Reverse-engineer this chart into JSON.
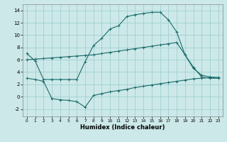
{
  "bg_color": "#cce8e8",
  "grid_color": "#99cccc",
  "line_color": "#1a6b6b",
  "xlabel": "Humidex (Indice chaleur)",
  "xlim": [
    -0.5,
    23.5
  ],
  "ylim": [
    -3.2,
    15.0
  ],
  "yticks": [
    -2,
    0,
    2,
    4,
    6,
    8,
    10,
    12,
    14
  ],
  "xticks": [
    0,
    1,
    2,
    3,
    4,
    5,
    6,
    7,
    8,
    9,
    10,
    11,
    12,
    13,
    14,
    15,
    16,
    17,
    18,
    19,
    20,
    21,
    22,
    23
  ],
  "line1_x": [
    0,
    1,
    2,
    3,
    4,
    5,
    6,
    7,
    8,
    9,
    10,
    11,
    12,
    13,
    14,
    15,
    16,
    17,
    18,
    19,
    20,
    21,
    22,
    23
  ],
  "line1_y": [
    7.0,
    5.8,
    2.8,
    2.8,
    2.8,
    2.8,
    2.8,
    5.7,
    8.3,
    9.5,
    11.0,
    11.5,
    13.0,
    13.3,
    13.5,
    13.7,
    13.7,
    12.5,
    10.5,
    6.8,
    4.8,
    3.2,
    3.0,
    3.0
  ],
  "line2_x": [
    0,
    1,
    2,
    3,
    4,
    5,
    6,
    7,
    8,
    9,
    10,
    11,
    12,
    13,
    14,
    15,
    16,
    17,
    18,
    19,
    20,
    21,
    22,
    23
  ],
  "line2_y": [
    6.0,
    6.1,
    6.2,
    6.3,
    6.4,
    6.5,
    6.6,
    6.7,
    6.8,
    7.0,
    7.2,
    7.4,
    7.6,
    7.8,
    8.0,
    8.2,
    8.4,
    8.6,
    8.8,
    6.8,
    4.6,
    3.5,
    3.2,
    3.1
  ],
  "line3_x": [
    0,
    1,
    2,
    3,
    4,
    5,
    6,
    7,
    8,
    9,
    10,
    11,
    12,
    13,
    14,
    15,
    16,
    17,
    18,
    19,
    20,
    21,
    22,
    23
  ],
  "line3_y": [
    3.0,
    2.8,
    2.5,
    -0.3,
    -0.5,
    -0.6,
    -0.8,
    -1.7,
    0.2,
    0.5,
    0.8,
    1.0,
    1.2,
    1.5,
    1.7,
    1.9,
    2.1,
    2.3,
    2.5,
    2.7,
    2.9,
    3.0,
    3.1,
    3.1
  ]
}
